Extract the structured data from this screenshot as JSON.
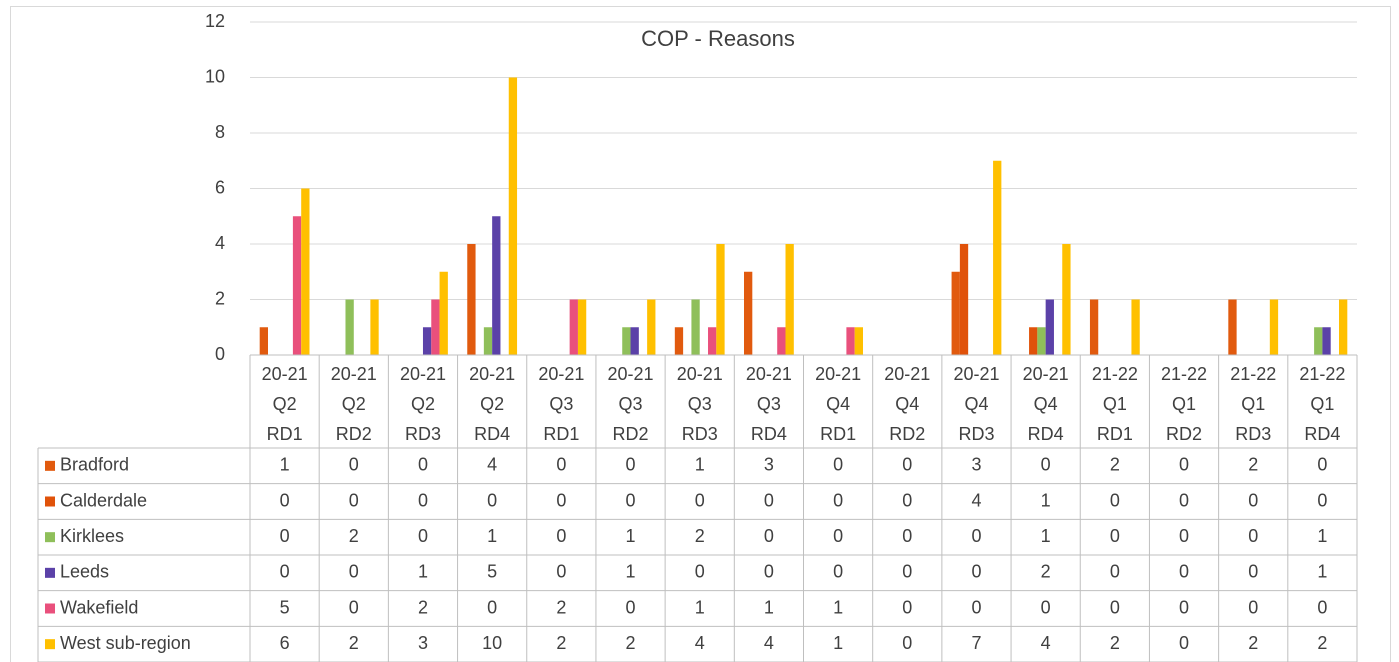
{
  "chart_data": {
    "type": "bar",
    "title": "COP - Reasons",
    "categories": [
      [
        "20-21",
        "Q2",
        "RD1"
      ],
      [
        "20-21",
        "Q2",
        "RD2"
      ],
      [
        "20-21",
        "Q2",
        "RD3"
      ],
      [
        "20-21",
        "Q2",
        "RD4"
      ],
      [
        "20-21",
        "Q3",
        "RD1"
      ],
      [
        "20-21",
        "Q3",
        "RD2"
      ],
      [
        "20-21",
        "Q3",
        "RD3"
      ],
      [
        "20-21",
        "Q3",
        "RD4"
      ],
      [
        "20-21",
        "Q4",
        "RD1"
      ],
      [
        "20-21",
        "Q4",
        "RD2"
      ],
      [
        "20-21",
        "Q4",
        "RD3"
      ],
      [
        "20-21",
        "Q4",
        "RD4"
      ],
      [
        "21-22",
        "Q1",
        "RD1"
      ],
      [
        "21-22",
        "Q1",
        "RD2"
      ],
      [
        "21-22",
        "Q1",
        "RD3"
      ],
      [
        "21-22",
        "Q1",
        "RD4"
      ]
    ],
    "series": [
      {
        "name": "Bradford",
        "color": "#e15a0e",
        "values": [
          1,
          0,
          0,
          4,
          0,
          0,
          1,
          3,
          0,
          0,
          3,
          0,
          2,
          0,
          2,
          0
        ]
      },
      {
        "name": "Calderdale",
        "color": "#e0520a",
        "values": [
          0,
          0,
          0,
          0,
          0,
          0,
          0,
          0,
          0,
          0,
          4,
          1,
          0,
          0,
          0,
          0
        ]
      },
      {
        "name": "Kirklees",
        "color": "#8fbf5a",
        "values": [
          0,
          2,
          0,
          1,
          0,
          1,
          2,
          0,
          0,
          0,
          0,
          1,
          0,
          0,
          0,
          1
        ]
      },
      {
        "name": "Leeds",
        "color": "#5b41a8",
        "values": [
          0,
          0,
          1,
          5,
          0,
          1,
          0,
          0,
          0,
          0,
          0,
          2,
          0,
          0,
          0,
          1
        ]
      },
      {
        "name": "Wakefield",
        "color": "#e9507c",
        "values": [
          5,
          0,
          2,
          0,
          2,
          0,
          1,
          1,
          1,
          0,
          0,
          0,
          0,
          0,
          0,
          0
        ]
      },
      {
        "name": "West sub-region",
        "color": "#ffc000",
        "values": [
          6,
          2,
          3,
          10,
          2,
          2,
          4,
          4,
          1,
          0,
          7,
          4,
          2,
          0,
          2,
          2
        ]
      }
    ],
    "ylim": [
      0,
      12
    ],
    "yticks": [
      0,
      2,
      4,
      6,
      8,
      10,
      12
    ],
    "grid": true
  }
}
